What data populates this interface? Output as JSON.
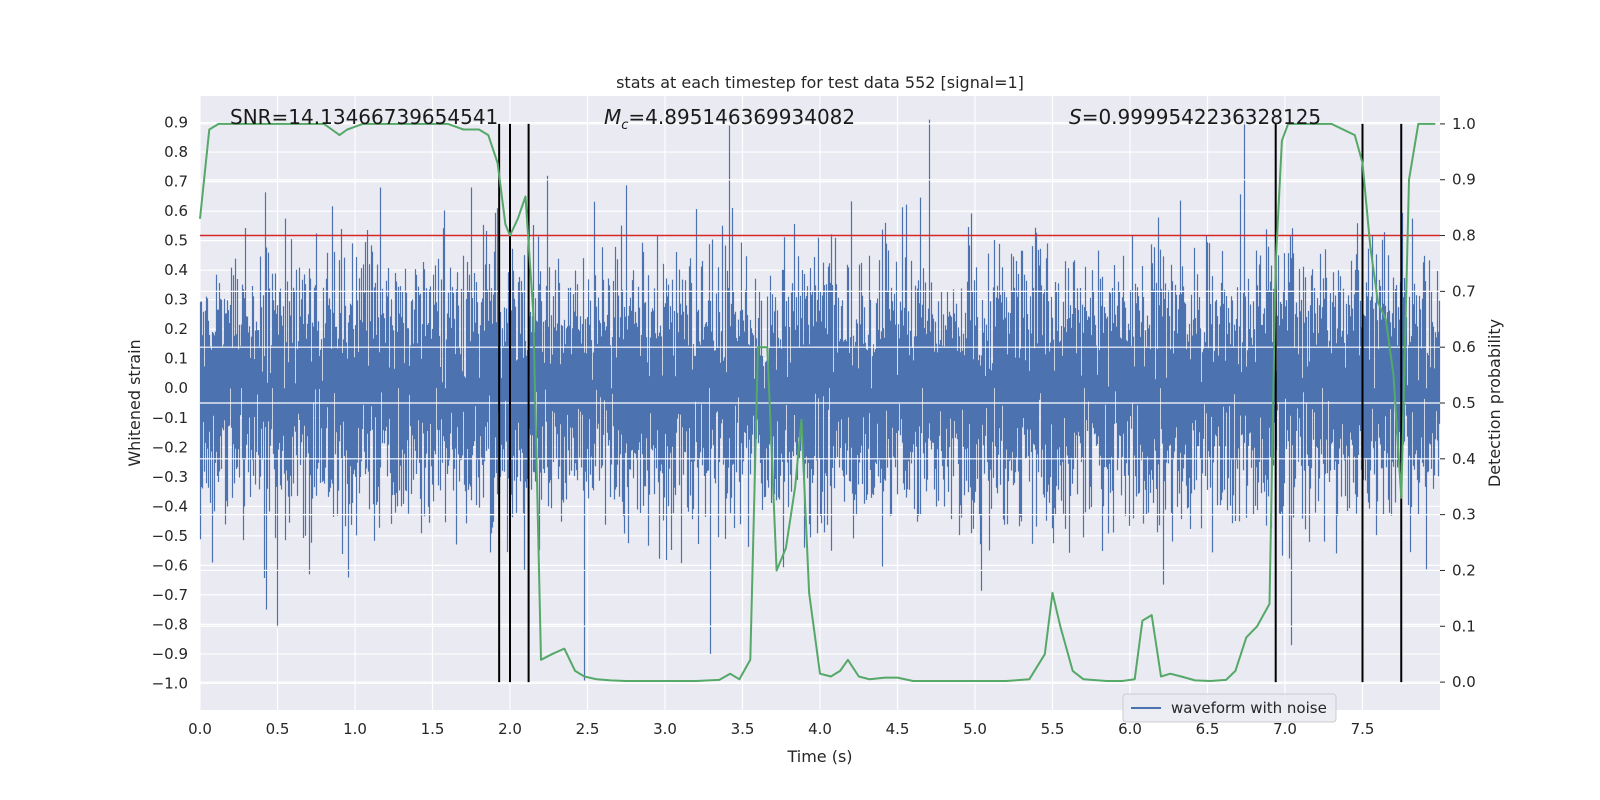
{
  "chart_data": {
    "type": "line",
    "title": "stats at each timestep for test data 552 [signal=1]",
    "xlabel": "Time (s)",
    "ylabel": "Whitened strain",
    "y2label": "Detection probability",
    "xlim": [
      0.0,
      8.0
    ],
    "ylim": [
      -1.09,
      0.99
    ],
    "y2lim": [
      -0.05,
      1.05
    ],
    "xticks": [
      "0.0",
      "0.5",
      "1.0",
      "1.5",
      "2.0",
      "2.5",
      "3.0",
      "3.5",
      "4.0",
      "4.5",
      "5.0",
      "5.5",
      "6.0",
      "6.5",
      "7.0",
      "7.5"
    ],
    "yticks": [
      "0.9",
      "0.8",
      "0.7",
      "0.6",
      "0.5",
      "0.4",
      "0.3",
      "0.2",
      "0.1",
      "0.0",
      "−0.1",
      "−0.2",
      "−0.3",
      "−0.4",
      "−0.5",
      "−0.6",
      "−0.7",
      "−0.8",
      "−0.9",
      "−1.0"
    ],
    "y2ticks": [
      "1.0",
      "0.9",
      "0.8",
      "0.7",
      "0.6",
      "0.5",
      "0.4",
      "0.3",
      "0.2",
      "0.1",
      "0.0"
    ],
    "threshold": 0.8,
    "threshold_color": "#d62728",
    "vlines": [
      1.93,
      2.0,
      2.12,
      6.94,
      7.5,
      7.75
    ],
    "annotations": {
      "snr": "SNR=14.13466739654541",
      "mc_symbol": "M",
      "mc_subscript": "c",
      "mc_value": "=4.895146369934082",
      "s_symbol": "S",
      "s_value": "=0.9999542236328125"
    },
    "legend": [
      "waveform with noise"
    ],
    "series": [
      {
        "name": "waveform with noise",
        "color": "#4c72b0",
        "axis": "left",
        "description": "whitened strain noise, dense band about ±0.35 with spikes to about ±0.9"
      },
      {
        "name": "detection probability",
        "color": "#55a868",
        "axis": "right",
        "x": [
          0.0,
          0.06,
          0.12,
          0.2,
          0.4,
          0.6,
          0.8,
          0.85,
          0.9,
          0.95,
          1.05,
          1.2,
          1.4,
          1.6,
          1.7,
          1.8,
          1.86,
          1.92,
          1.97,
          2.0,
          2.05,
          2.1,
          2.15,
          2.2,
          2.27,
          2.35,
          2.42,
          2.48,
          2.56,
          2.65,
          2.75,
          3.0,
          3.2,
          3.35,
          3.42,
          3.48,
          3.55,
          3.6,
          3.66,
          3.72,
          3.78,
          3.84,
          3.88,
          3.93,
          4.0,
          4.07,
          4.13,
          4.18,
          4.25,
          4.32,
          4.42,
          4.5,
          4.6,
          4.8,
          5.0,
          5.2,
          5.35,
          5.45,
          5.5,
          5.55,
          5.63,
          5.7,
          5.85,
          5.95,
          6.03,
          6.08,
          6.14,
          6.2,
          6.26,
          6.33,
          6.42,
          6.52,
          6.62,
          6.68,
          6.75,
          6.82,
          6.9,
          6.94,
          6.98,
          7.02,
          7.1,
          7.3,
          7.45,
          7.5,
          7.55,
          7.6,
          7.65,
          7.7,
          7.75,
          7.8,
          7.86,
          7.92,
          7.97
        ],
        "values": [
          0.83,
          0.99,
          1.0,
          1.0,
          1.0,
          1.0,
          1.0,
          0.99,
          0.98,
          0.99,
          1.0,
          1.0,
          1.0,
          1.0,
          0.99,
          0.99,
          0.98,
          0.93,
          0.82,
          0.8,
          0.83,
          0.87,
          0.66,
          0.04,
          0.05,
          0.06,
          0.02,
          0.01,
          0.005,
          0.003,
          0.002,
          0.002,
          0.002,
          0.004,
          0.015,
          0.005,
          0.04,
          0.6,
          0.6,
          0.2,
          0.24,
          0.35,
          0.47,
          0.16,
          0.015,
          0.01,
          0.02,
          0.04,
          0.01,
          0.005,
          0.008,
          0.008,
          0.002,
          0.002,
          0.002,
          0.002,
          0.005,
          0.05,
          0.16,
          0.1,
          0.02,
          0.005,
          0.002,
          0.002,
          0.005,
          0.11,
          0.12,
          0.01,
          0.015,
          0.01,
          0.003,
          0.002,
          0.004,
          0.02,
          0.08,
          0.1,
          0.14,
          0.75,
          0.97,
          1.0,
          1.0,
          1.0,
          0.98,
          0.93,
          0.78,
          0.68,
          0.65,
          0.55,
          0.33,
          0.9,
          1.0,
          1.0,
          1.0
        ]
      }
    ]
  }
}
